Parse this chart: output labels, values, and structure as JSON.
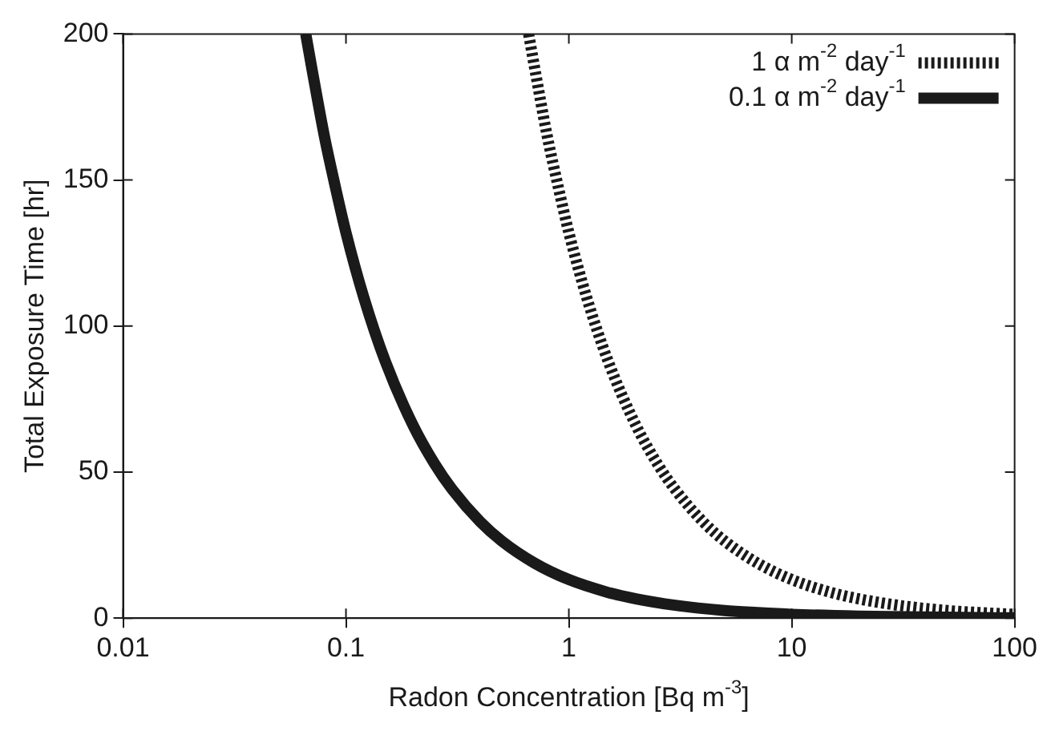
{
  "chart_data": {
    "type": "line",
    "xlabel": "Radon Concentration [Bq m$^{-3}$]",
    "ylabel": "Total Exposure Time [hr]",
    "log": "x",
    "xlim": [
      0.01,
      100
    ],
    "xticks": [
      0.01,
      0.1,
      1,
      10,
      100
    ],
    "ylim": [
      0,
      200
    ],
    "yticks": [
      0,
      50,
      100,
      150,
      200
    ],
    "grid": false,
    "legend": "top right",
    "marker": "none",
    "series": [
      {
        "name": "1 α m$^{-2}$ day$^{-1}$",
        "color": "#1a1a1a",
        "line_style": "dashed",
        "x": [
          0.66,
          0.7,
          0.8,
          0.9,
          1,
          1.2,
          1.5,
          2,
          2.5,
          3,
          4,
          5,
          7,
          10,
          15,
          20,
          30,
          50,
          70,
          100
        ],
        "values": [
          200,
          189,
          165,
          147,
          132,
          110,
          88,
          66,
          52.8,
          44,
          33,
          26.4,
          18.9,
          13.2,
          8.8,
          6.6,
          4.4,
          2.6,
          1.9,
          1.3
        ]
      },
      {
        "name": "0.1 α m$^{-2}$ day$^{-1}$",
        "color": "#1a1a1a",
        "line_style": "solid",
        "x": [
          0.066,
          0.07,
          0.08,
          0.09,
          0.1,
          0.12,
          0.15,
          0.2,
          0.25,
          0.3,
          0.4,
          0.5,
          0.7,
          1,
          1.5,
          2,
          3,
          5,
          7,
          10,
          20,
          50,
          100
        ],
        "values": [
          200,
          189,
          165,
          147,
          132,
          110,
          88,
          66,
          52.8,
          44,
          33,
          26.4,
          18.9,
          13.2,
          8.8,
          6.6,
          4.4,
          2.6,
          1.9,
          1.3,
          0.7,
          0.3,
          0.1
        ]
      }
    ]
  }
}
